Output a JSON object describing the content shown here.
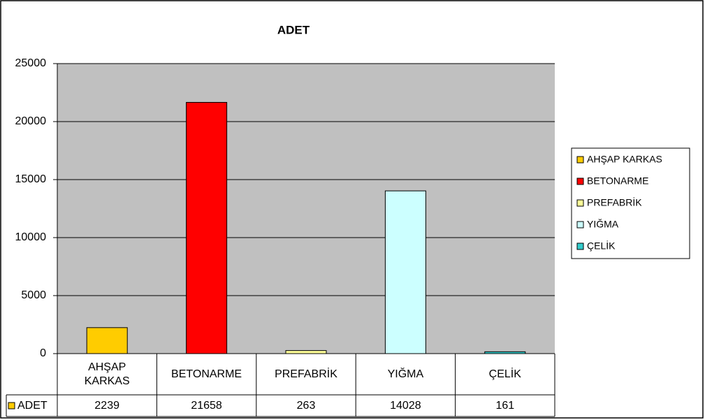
{
  "chart_data": {
    "type": "bar",
    "title": "ADET",
    "series_name": "ADET",
    "categories": [
      "AHŞAP KARKAS",
      "BETONARME",
      "PREFABRİK",
      "YIĞMA",
      "ÇELİK"
    ],
    "values": [
      2239,
      21658,
      263,
      14028,
      161
    ],
    "colors": [
      "#FFCC00",
      "#FF0000",
      "#FFFF99",
      "#CCFFFF",
      "#33CCCC"
    ],
    "ylim": [
      0,
      25000
    ],
    "yticks": [
      0,
      5000,
      10000,
      15000,
      20000,
      25000
    ],
    "grid": true
  }
}
